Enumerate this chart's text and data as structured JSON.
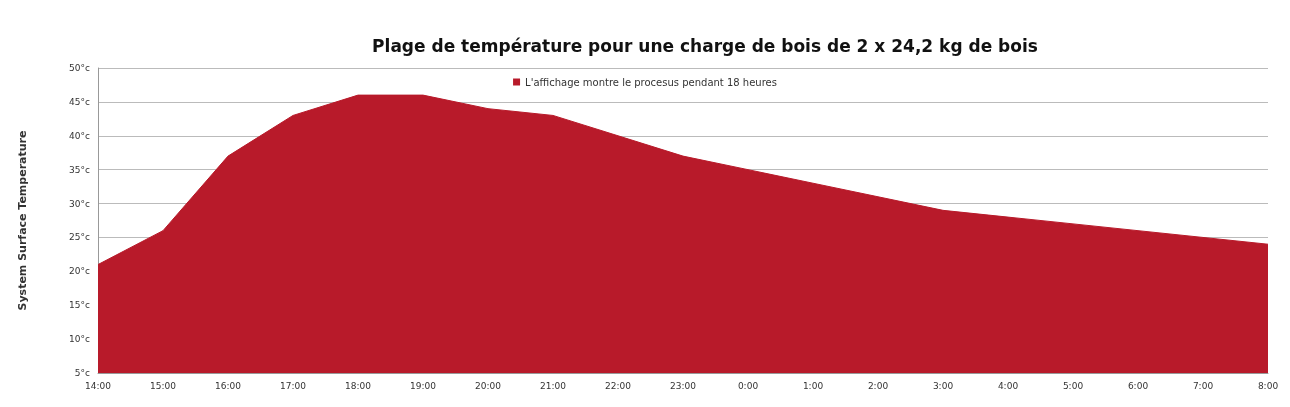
{
  "chart_data": {
    "type": "area",
    "title": "Plage de température pour une charge de bois de 2 x 24,2 kg de bois",
    "ylabel": "System Surface Temperature",
    "categories": [
      "14:00",
      "15:00",
      "16:00",
      "17:00",
      "18:00",
      "19:00",
      "20:00",
      "21:00",
      "22:00",
      "23:00",
      "0:00",
      "1:00",
      "2:00",
      "3:00",
      "4:00",
      "5:00",
      "6:00",
      "7:00",
      "8:00"
    ],
    "series": [
      {
        "name": "L'affichage montre le procesus pendant 18 heures",
        "color": "#b81a2a",
        "values": [
          21,
          26,
          37,
          43,
          46,
          46,
          44,
          43,
          40,
          37,
          35,
          33,
          31,
          29,
          28,
          27,
          26,
          25,
          24
        ]
      }
    ],
    "ylim": [
      5,
      50
    ],
    "yticks": [
      {
        "value": 5,
        "label": "5°c"
      },
      {
        "value": 10,
        "label": "10°c"
      },
      {
        "value": 15,
        "label": "15°c"
      },
      {
        "value": 20,
        "label": "20°c"
      },
      {
        "value": 25,
        "label": "25°c"
      },
      {
        "value": 30,
        "label": "30°c"
      },
      {
        "value": 35,
        "label": "35°c"
      },
      {
        "value": 40,
        "label": "40°c"
      },
      {
        "value": 45,
        "label": "45°c"
      },
      {
        "value": 50,
        "label": "50°c"
      }
    ],
    "grid": "y",
    "legend": "top",
    "marker": "none"
  }
}
